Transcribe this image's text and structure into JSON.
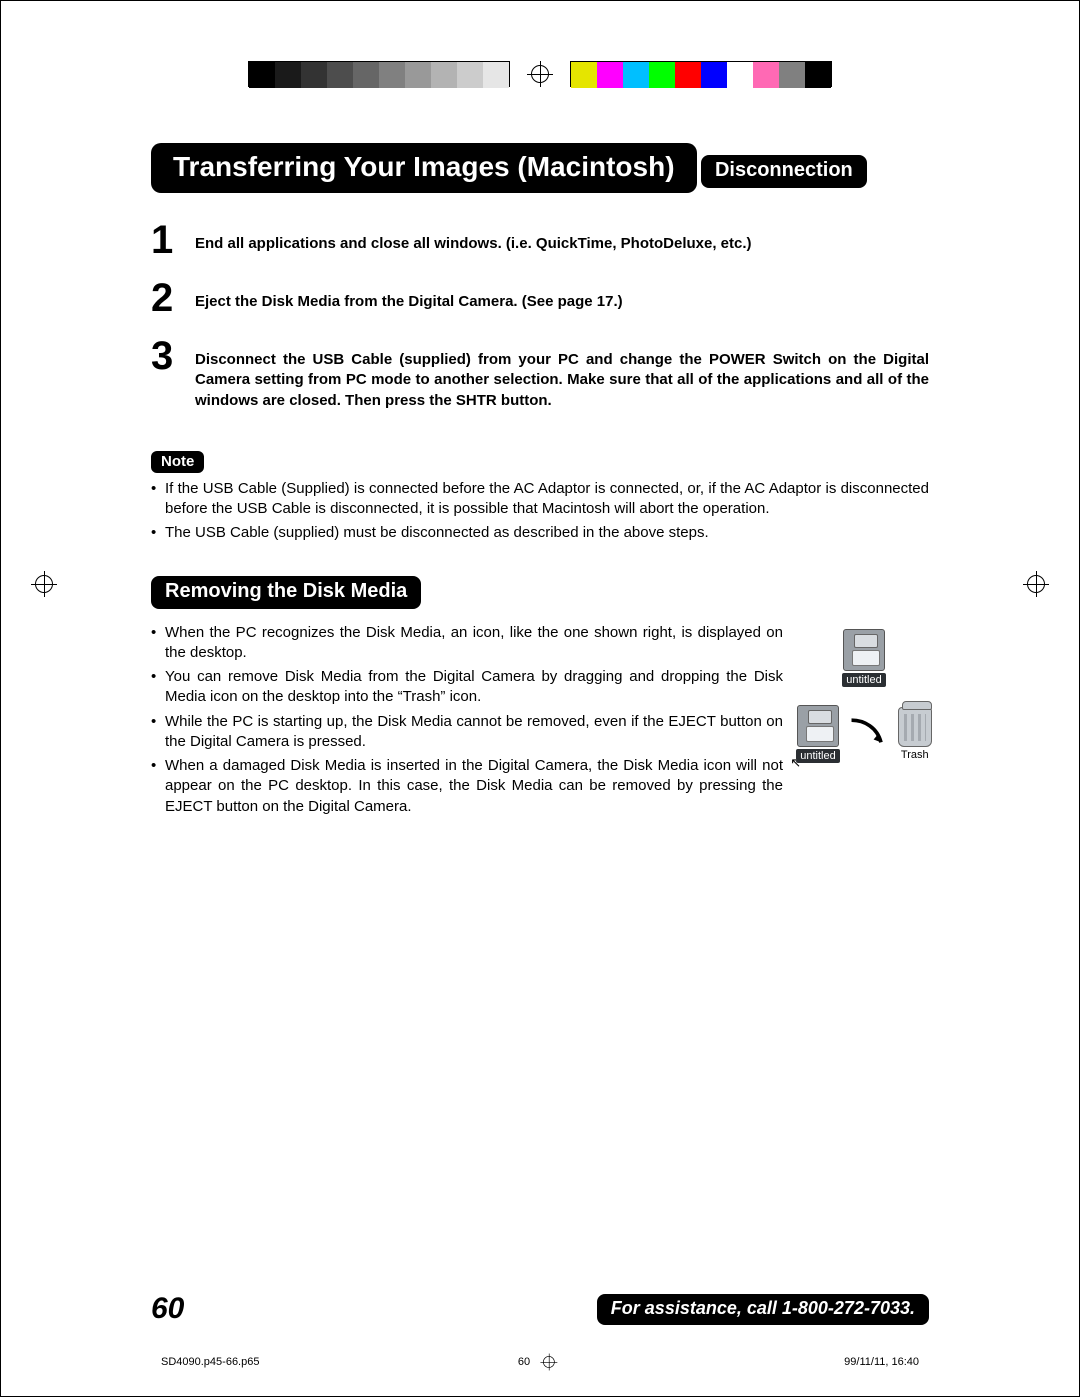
{
  "calibration": {
    "grayscale": [
      "#000000",
      "#1a1a1a",
      "#333333",
      "#4d4d4d",
      "#666666",
      "#808080",
      "#999999",
      "#b3b3b3",
      "#cccccc",
      "#e6e6e6"
    ],
    "colors": [
      "#e5e500",
      "#ff00ff",
      "#00bfff",
      "#00ff00",
      "#ff0000",
      "#0000ff",
      "#ffffff",
      "#ff69b4",
      "#808080",
      "#000000"
    ]
  },
  "title": "Transferring Your Images (Macintosh)",
  "section_disconnection": {
    "heading": "Disconnection",
    "steps": [
      {
        "n": "1",
        "text": "End all applications and close all windows. (i.e. QuickTime, PhotoDeluxe, etc.)"
      },
      {
        "n": "2",
        "text": "Eject the Disk Media from the Digital Camera.  (See page 17.)"
      },
      {
        "n": "3",
        "text": "Disconnect  the USB Cable (supplied) from your PC and change the POWER Switch on the Digital Camera setting  from PC mode to another selection. Make sure that all of the applications and all of the windows are closed. Then press the SHTR button."
      }
    ]
  },
  "note": {
    "label": "Note",
    "items": [
      "If the USB Cable (Supplied) is connected before the AC Adaptor is connected, or, if the AC Adaptor is disconnected before the USB Cable is disconnected, it is possible that Macintosh will abort the operation.",
      "The USB Cable (supplied) must be disconnected as described in the above steps."
    ]
  },
  "section_removing": {
    "heading": "Removing the Disk Media",
    "items": [
      "When the PC recognizes the Disk Media, an icon, like the one shown right, is displayed on the desktop.",
      "You can remove Disk Media from the Digital Camera by dragging and dropping the Disk Media icon on the desktop into the “Trash” icon.",
      "While the PC is starting up, the Disk Media cannot be removed, even if the EJECT button on the Digital Camera is pressed.",
      "When a damaged Disk Media is inserted in the Digital Camera, the Disk Media icon will not appear on the PC desktop. In this case, the Disk Media can be removed by pressing the EJECT button on the Digital Camera."
    ],
    "disk_label_1": "untitled",
    "disk_label_2": "untitled",
    "trash_label": "Trash"
  },
  "footer": {
    "page_number": "60",
    "assist": "For assistance, call 1-800-272-7033."
  },
  "printfoot": {
    "file": "SD4090.p45-66.p65",
    "page": "60",
    "timestamp": "99/11/11, 16:40"
  }
}
